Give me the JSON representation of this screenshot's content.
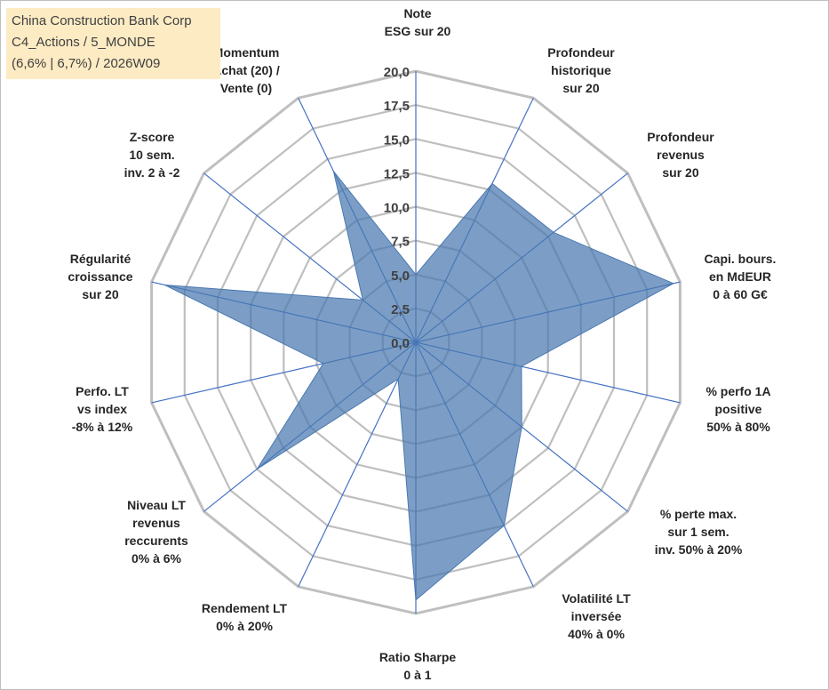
{
  "title_box": {
    "line1": "China Construction Bank Corp",
    "line2": "C4_Actions / 5_MONDE",
    "line3": "(6,6% | 6,7%) / 2026W09"
  },
  "colors": {
    "fill": "#4a78b0",
    "grid": "#bfbfbf",
    "axis": "#4472c4",
    "title_bg": "#fdebc4"
  },
  "chart_data": {
    "type": "radar",
    "title": "China Construction Bank Corp",
    "rlim": [
      0,
      20
    ],
    "rticks": [
      "0,0",
      "2,5",
      "5,0",
      "7,5",
      "10,0",
      "12,5",
      "15,0",
      "17,5",
      "20,0"
    ],
    "axes": [
      {
        "label": [
          "Note",
          "ESG sur 20"
        ],
        "value": 5.0
      },
      {
        "label": [
          "Profondeur",
          "historique",
          "sur 20"
        ],
        "value": 13.0
      },
      {
        "label": [
          "Profondeur",
          "revenus",
          "sur 20"
        ],
        "value": 13.0
      },
      {
        "label": [
          "Capi. bours.",
          "en MdEUR",
          "0 à 60 G€"
        ],
        "value": 19.5
      },
      {
        "label": [
          "% perfo 1A",
          "positive",
          "50% à 80%"
        ],
        "value": 8.0
      },
      {
        "label": [
          "% perte max.",
          "sur 1 sem.",
          "inv. 50% à 20%"
        ],
        "value": 10.0
      },
      {
        "label": [
          "Volatilité LT",
          "inversée",
          "40% à 0%"
        ],
        "value": 15.0
      },
      {
        "label": [
          "Ratio Sharpe",
          "0 à 1"
        ],
        "value": 19.0
      },
      {
        "label": [
          "Rendement LT",
          "0% à 20%"
        ],
        "value": 3.0
      },
      {
        "label": [
          "Niveau LT",
          "revenus",
          "reccurents",
          "0% à 6%"
        ],
        "value": 15.0
      },
      {
        "label": [
          "Perfo. LT",
          "vs index",
          "-8% à 12%"
        ],
        "value": 7.0
      },
      {
        "label": [
          "Régularité",
          "croissance",
          "sur 20"
        ],
        "value": 19.0
      },
      {
        "label": [
          "Z-score",
          "10 sem.",
          "inv. 2 à -2"
        ],
        "value": 5.0
      },
      {
        "label": [
          "Momentum",
          "Achat (20) /",
          "Vente (0)"
        ],
        "value": 14.0
      }
    ]
  }
}
